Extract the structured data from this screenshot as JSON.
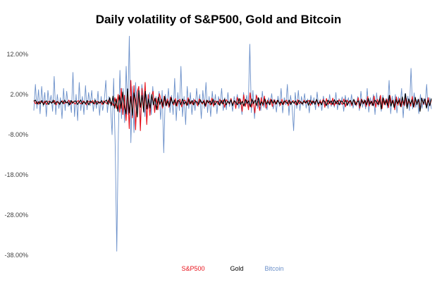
{
  "chart_data": {
    "type": "line",
    "title": "Daily volatility of S&P500, Gold and Bitcoin",
    "xlabel": "",
    "ylabel": "",
    "ylim": [
      -38,
      16
    ],
    "y_ticks": [
      {
        "value": 12,
        "label": "12.00%"
      },
      {
        "value": 2,
        "label": "2.00%"
      },
      {
        "value": -8,
        "label": "-8.00%"
      },
      {
        "value": -18,
        "label": "-18.00%"
      },
      {
        "value": -28,
        "label": "-28.00%"
      },
      {
        "value": -38,
        "label": "-38.00%"
      }
    ],
    "grid": false,
    "legend_position": "bottom",
    "series": [
      {
        "name": "S&P500",
        "color": "#e8111a",
        "values": [
          0.5,
          -0.3,
          0.2,
          -0.4,
          0.3,
          0.1,
          -0.2,
          0.4,
          -0.5,
          0.2,
          0.3,
          -0.1,
          0.0,
          0.5,
          -0.6,
          0.3,
          -0.2,
          0.1,
          0.4,
          -0.3,
          0.2,
          -0.1,
          0.6,
          -0.5,
          0.3,
          0.1,
          -0.4,
          0.2,
          0.5,
          -0.2,
          -0.3,
          0.4,
          0.1,
          -0.6,
          0.3,
          0.2,
          -0.1,
          0.5,
          -0.4,
          0.1,
          0.3,
          -0.2,
          0.2,
          -0.5,
          0.4,
          0.0,
          -0.3,
          0.6,
          -0.2,
          0.1,
          -0.8,
          1.2,
          -1.5,
          2.0,
          -2.4,
          3.5,
          -3.0,
          1.8,
          -4.5,
          3.0,
          -6.5,
          5.5,
          -3.8,
          4.2,
          -6.8,
          2.5,
          4.0,
          -7.0,
          3.5,
          -2.0,
          5.0,
          -5.5,
          2.0,
          -3.2,
          1.5,
          2.8,
          -2.5,
          1.0,
          -1.8,
          2.2,
          0.5,
          -1.4,
          1.6,
          -0.8,
          0.9,
          -1.2,
          1.4,
          0.2,
          -0.6,
          1.0,
          -0.9,
          0.5,
          0.8,
          -1.1,
          0.4,
          0.6,
          -0.7,
          1.2,
          -0.4,
          0.3,
          -0.5,
          0.7,
          0.1,
          -0.8,
          0.9,
          0.2,
          -0.4,
          0.6,
          -1.0,
          0.5,
          0.3,
          -0.6,
          1.1,
          -0.9,
          0.4,
          0.2,
          -0.5,
          0.8,
          -0.2,
          0.6,
          -1.2,
          0.7,
          0.3,
          -0.4,
          1.0,
          -0.6,
          0.5,
          -1.5,
          1.3,
          -0.3,
          0.8,
          -2.2,
          1.9,
          -1.0,
          0.6,
          -1.8,
          2.4,
          -1.2,
          0.4,
          -2.6,
          1.8,
          0.5,
          -2.0,
          1.2,
          -0.8,
          1.6,
          -1.4,
          0.6,
          -0.3,
          0.9,
          -1.0,
          0.7,
          -0.4,
          0.5,
          0.2,
          -0.7,
          0.8,
          -0.5,
          0.3,
          0.6,
          -0.8,
          0.4,
          -0.2,
          0.5,
          0.1,
          -0.6,
          0.7,
          -0.3,
          0.2,
          -0.4,
          0.6,
          -0.2,
          0.3,
          0.5,
          -0.7,
          0.4,
          -0.1,
          0.2,
          0.6,
          -0.9,
          0.5,
          -0.3,
          0.8,
          -1.2,
          1.0,
          -0.5,
          0.4,
          -0.6,
          1.1,
          -0.8,
          0.3,
          -0.4,
          0.7,
          0.2,
          -0.5,
          0.9,
          -1.1,
          0.6,
          -0.2,
          0.4,
          -0.8,
          0.5,
          0.3,
          -0.6,
          1.2,
          -1.4,
          0.9,
          -0.3,
          0.6,
          -1.0,
          1.5,
          -0.9,
          0.4,
          -0.7,
          1.6,
          -1.2,
          0.8,
          -0.5,
          1.8,
          -1.5,
          1.0,
          -0.6,
          0.9,
          -1.3,
          1.7,
          -0.4,
          0.6,
          -1.8,
          1.4,
          -0.7,
          1.0,
          -1.1,
          0.5,
          -0.8,
          1.3,
          -0.6,
          0.4,
          -0.9,
          1.5,
          -1.2,
          0.7,
          -0.3,
          0.8,
          -1.6,
          1.1,
          -0.5,
          0.9,
          -1.0,
          1.2,
          -0.8,
          0.6
        ]
      },
      {
        "name": "Gold",
        "color": "#000000",
        "values": [
          0.3,
          0.6,
          -0.4,
          0.2,
          -0.3,
          0.5,
          -0.6,
          0.1,
          0.4,
          -0.5,
          0.3,
          -0.2,
          0.6,
          -0.4,
          0.2,
          0.1,
          -0.5,
          0.4,
          -0.3,
          0.6,
          -0.1,
          0.2,
          -0.6,
          0.5,
          -0.2,
          0.3,
          0.4,
          -0.5,
          0.1,
          0.6,
          -0.4,
          0.2,
          -0.3,
          0.5,
          -0.6,
          0.4,
          0.1,
          -0.3,
          0.6,
          -0.5,
          0.2,
          -0.1,
          0.5,
          -0.4,
          0.3,
          0.6,
          -0.5,
          1.2,
          -0.8,
          1.6,
          -1.4,
          0.9,
          -2.2,
          1.8,
          -1.5,
          2.6,
          -1.0,
          -2.8,
          3.4,
          -2.6,
          1.5,
          -3.2,
          2.4,
          0.6,
          -3.6,
          3.0,
          -1.2,
          1.8,
          -2.4,
          2.8,
          -1.6,
          0.9,
          -1.4,
          2.0,
          -0.6,
          1.1,
          -1.8,
          1.3,
          -0.5,
          0.8,
          -1.0,
          1.5,
          -0.7,
          0.4,
          -0.9,
          1.2,
          -0.3,
          0.6,
          -0.8,
          0.5,
          0.3,
          -0.6,
          0.9,
          -0.4,
          0.2,
          -0.7,
          0.8,
          -0.3,
          0.5,
          -0.6,
          0.4,
          0.1,
          -0.5,
          0.7,
          -0.2,
          0.3,
          -0.8,
          0.6,
          -0.1,
          0.4,
          -0.5,
          0.8,
          -0.6,
          0.2,
          0.3,
          -0.7,
          0.5,
          -0.4,
          0.9,
          -0.6,
          0.3,
          -0.2,
          0.7,
          -0.8,
          0.4,
          0.1,
          -0.6,
          1.0,
          -0.5,
          0.3,
          -0.9,
          0.8,
          -0.2,
          0.4,
          -1.1,
          0.9,
          -0.3,
          0.6,
          -0.8,
          1.2,
          -0.7,
          0.2,
          -0.5,
          0.9,
          -0.4,
          0.3,
          -0.6,
          0.7,
          -0.2,
          0.5,
          -0.4,
          0.6,
          -0.3,
          0.2,
          -0.5,
          0.4,
          0.1,
          -0.3,
          0.6,
          -0.5,
          0.3,
          -0.2,
          0.4,
          -0.6,
          0.5,
          0.2,
          -0.4,
          0.3,
          -0.1,
          0.5,
          -0.7,
          0.6,
          -0.3,
          0.4,
          -0.5,
          0.8,
          -0.4,
          0.2,
          -0.6,
          0.5,
          0.3,
          -0.8,
          0.6,
          -0.2,
          0.4,
          -0.5,
          0.7,
          -0.3,
          0.5,
          -0.6,
          0.4,
          0.2,
          -0.4,
          0.6,
          -0.7,
          0.3,
          0.5,
          -0.5,
          0.8,
          -0.6,
          0.2,
          0.4,
          -0.9,
          0.7,
          -0.3,
          0.5,
          -0.6,
          1.0,
          -0.4,
          0.3,
          -0.8,
          0.6,
          0.2,
          -0.5,
          0.9,
          -1.6,
          1.2,
          -0.4,
          0.6,
          -0.8,
          1.8,
          -0.9,
          0.5,
          -1.2,
          0.8,
          -0.3,
          0.6,
          -1.0,
          1.4,
          -0.6,
          2.2,
          -1.5,
          0.9,
          -0.4,
          0.7,
          -1.1,
          1.3,
          -0.5,
          0.8,
          -2.2,
          1.1,
          -0.3,
          0.9,
          -1.4,
          0.6,
          -0.8,
          1.0
        ]
      },
      {
        "name": "Bitcoin",
        "color": "#6a8fc9",
        "values": [
          -2.0,
          4.5,
          -1.5,
          3.2,
          -2.8,
          4.0,
          -1.0,
          2.5,
          -3.5,
          3.0,
          -0.5,
          1.8,
          -2.2,
          6.5,
          -3.0,
          2.0,
          -1.5,
          1.2,
          -4.0,
          3.5,
          -2.0,
          2.8,
          -1.0,
          0.5,
          -2.5,
          7.5,
          -3.5,
          2.0,
          -4.5,
          5.0,
          -2.0,
          1.5,
          -3.0,
          4.2,
          -1.8,
          2.5,
          -0.8,
          3.0,
          -2.2,
          1.0,
          -1.5,
          2.8,
          -3.2,
          1.5,
          -2.0,
          0.5,
          5.5,
          -2.5,
          1.5,
          -1.0,
          -8.0,
          6.0,
          -11.0,
          -37.0,
          -8.0,
          8.0,
          -4.0,
          3.5,
          -5.0,
          9.0,
          -3.0,
          16.5,
          -10.0,
          4.0,
          -7.5,
          5.0,
          -2.0,
          3.5,
          -6.0,
          4.5,
          1.5,
          -3.5,
          2.0,
          -1.5,
          2.5,
          -3.0,
          4.0,
          -2.0,
          1.5,
          -0.5,
          2.8,
          -4.2,
          3.0,
          -12.5,
          2.0,
          -1.0,
          3.5,
          -2.5,
          1.8,
          -3.0,
          6.0,
          -4.5,
          2.5,
          -2.0,
          9.0,
          -3.5,
          1.5,
          -5.5,
          4.0,
          -1.5,
          2.5,
          -3.0,
          1.0,
          -2.0,
          3.5,
          -1.0,
          2.0,
          -4.0,
          3.0,
          -1.5,
          5.0,
          -2.5,
          1.5,
          -3.5,
          2.8,
          -1.2,
          2.0,
          -2.8,
          1.5,
          -0.8,
          3.5,
          -2.0,
          1.2,
          -1.8,
          2.5,
          -1.0,
          0.8,
          -2.2,
          1.5,
          -0.5,
          2.0,
          -1.5,
          1.0,
          -3.0,
          2.5,
          -0.8,
          1.8,
          -1.2,
          14.5,
          -2.5,
          3.0,
          -4.0,
          2.0,
          -1.5,
          1.0,
          -2.0,
          2.8,
          -1.2,
          0.6,
          -1.8,
          1.2,
          -0.4,
          2.2,
          -1.6,
          0.8,
          -2.4,
          1.6,
          -1.0,
          3.5,
          -2.6,
          1.2,
          -0.6,
          4.5,
          -3.2,
          1.8,
          -1.0,
          -7.0,
          2.5,
          -1.5,
          3.0,
          -2.0,
          1.5,
          -0.8,
          2.2,
          -1.4,
          0.9,
          -2.6,
          1.8,
          -0.6,
          1.2,
          -1.8,
          2.6,
          -1.2,
          0.8,
          -2.0,
          1.6,
          -0.5,
          1.0,
          -1.5,
          2.0,
          -1.0,
          0.6,
          -1.2,
          2.5,
          -1.8,
          1.0,
          -0.6,
          1.4,
          -2.2,
          1.8,
          -0.8,
          1.2,
          -1.0,
          2.0,
          -1.4,
          0.6,
          -0.9,
          1.5,
          -2.0,
          2.8,
          -1.2,
          0.8,
          -1.6,
          3.5,
          -2.4,
          1.2,
          -0.8,
          2.0,
          -3.0,
          2.4,
          -1.0,
          1.5,
          -2.2,
          1.8,
          -0.6,
          1.0,
          -1.4,
          5.5,
          -2.8,
          1.6,
          -1.2,
          2.0,
          -2.6,
          1.4,
          -0.8,
          3.5,
          -3.8,
          2.2,
          -1.0,
          1.6,
          -2.0,
          8.5,
          -1.6,
          2.4,
          -1.2,
          0.8,
          -2.8,
          2.0,
          -1.5,
          1.0,
          -0.6,
          4.5,
          -2.2,
          1.2,
          -1.6
        ]
      }
    ]
  }
}
